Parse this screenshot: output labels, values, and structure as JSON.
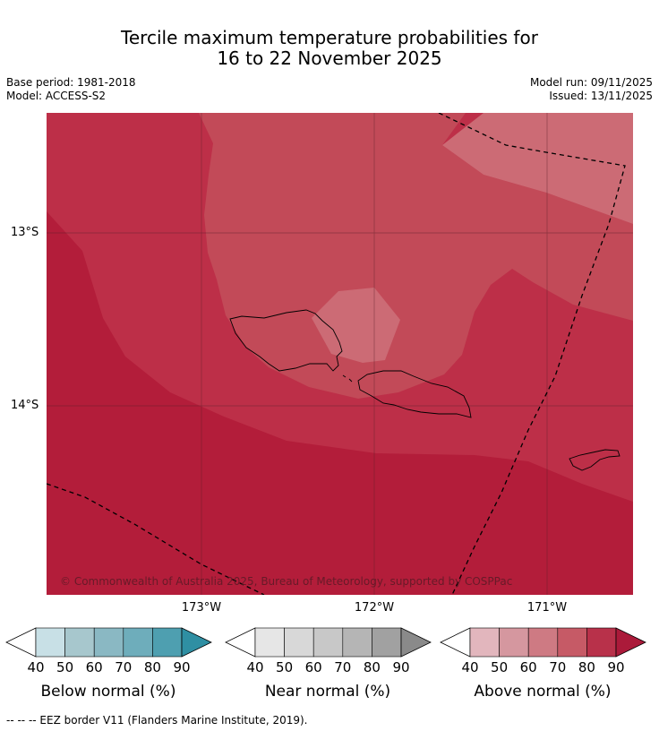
{
  "title_line1": "Tercile maximum temperature probabilities for",
  "title_line2": "16 to 22 November 2025",
  "base_period": "Base period: 1981-2018",
  "model": "Model: ACCESS-S2",
  "model_run": "Model run: 09/11/2025",
  "issued": "Issued: 13/11/2025",
  "map": {
    "lat_labels": [
      "13°S",
      "14°S"
    ],
    "lon_labels": [
      "173°W",
      "172°W",
      "171°W"
    ],
    "copyright": "© Commonwealth of Australia 2025, Bureau of Meteorology, supported by COSPPac",
    "colors": {
      "above_90": "#b31d3a",
      "above_80": "#bd2f48",
      "above_70": "#c24a58",
      "above_60": "#cc6b75"
    }
  },
  "colorbars": [
    {
      "title": "Below normal (%)",
      "ticks": [
        "40",
        "50",
        "60",
        "70",
        "80",
        "90"
      ],
      "colors": [
        "#c8e0e6",
        "#a7c7cd",
        "#8ab8c3",
        "#6eadbb",
        "#4e9fb0",
        "#2f8fa3"
      ]
    },
    {
      "title": "Near normal (%)",
      "ticks": [
        "40",
        "50",
        "60",
        "70",
        "80",
        "90"
      ],
      "colors": [
        "#e6e6e6",
        "#d8d8d8",
        "#c8c8c8",
        "#b5b5b5",
        "#a1a1a1",
        "#8a8a8a"
      ]
    },
    {
      "title": "Above normal (%)",
      "ticks": [
        "40",
        "50",
        "60",
        "70",
        "80",
        "90"
      ],
      "colors": [
        "#e2b6bd",
        "#d5979f",
        "#ce7a83",
        "#c65a66",
        "#b8314a",
        "#ab1a3a"
      ]
    }
  ],
  "footnote": "--  --  -- EEZ border V11 (Flanders Marine Institute, 2019)."
}
